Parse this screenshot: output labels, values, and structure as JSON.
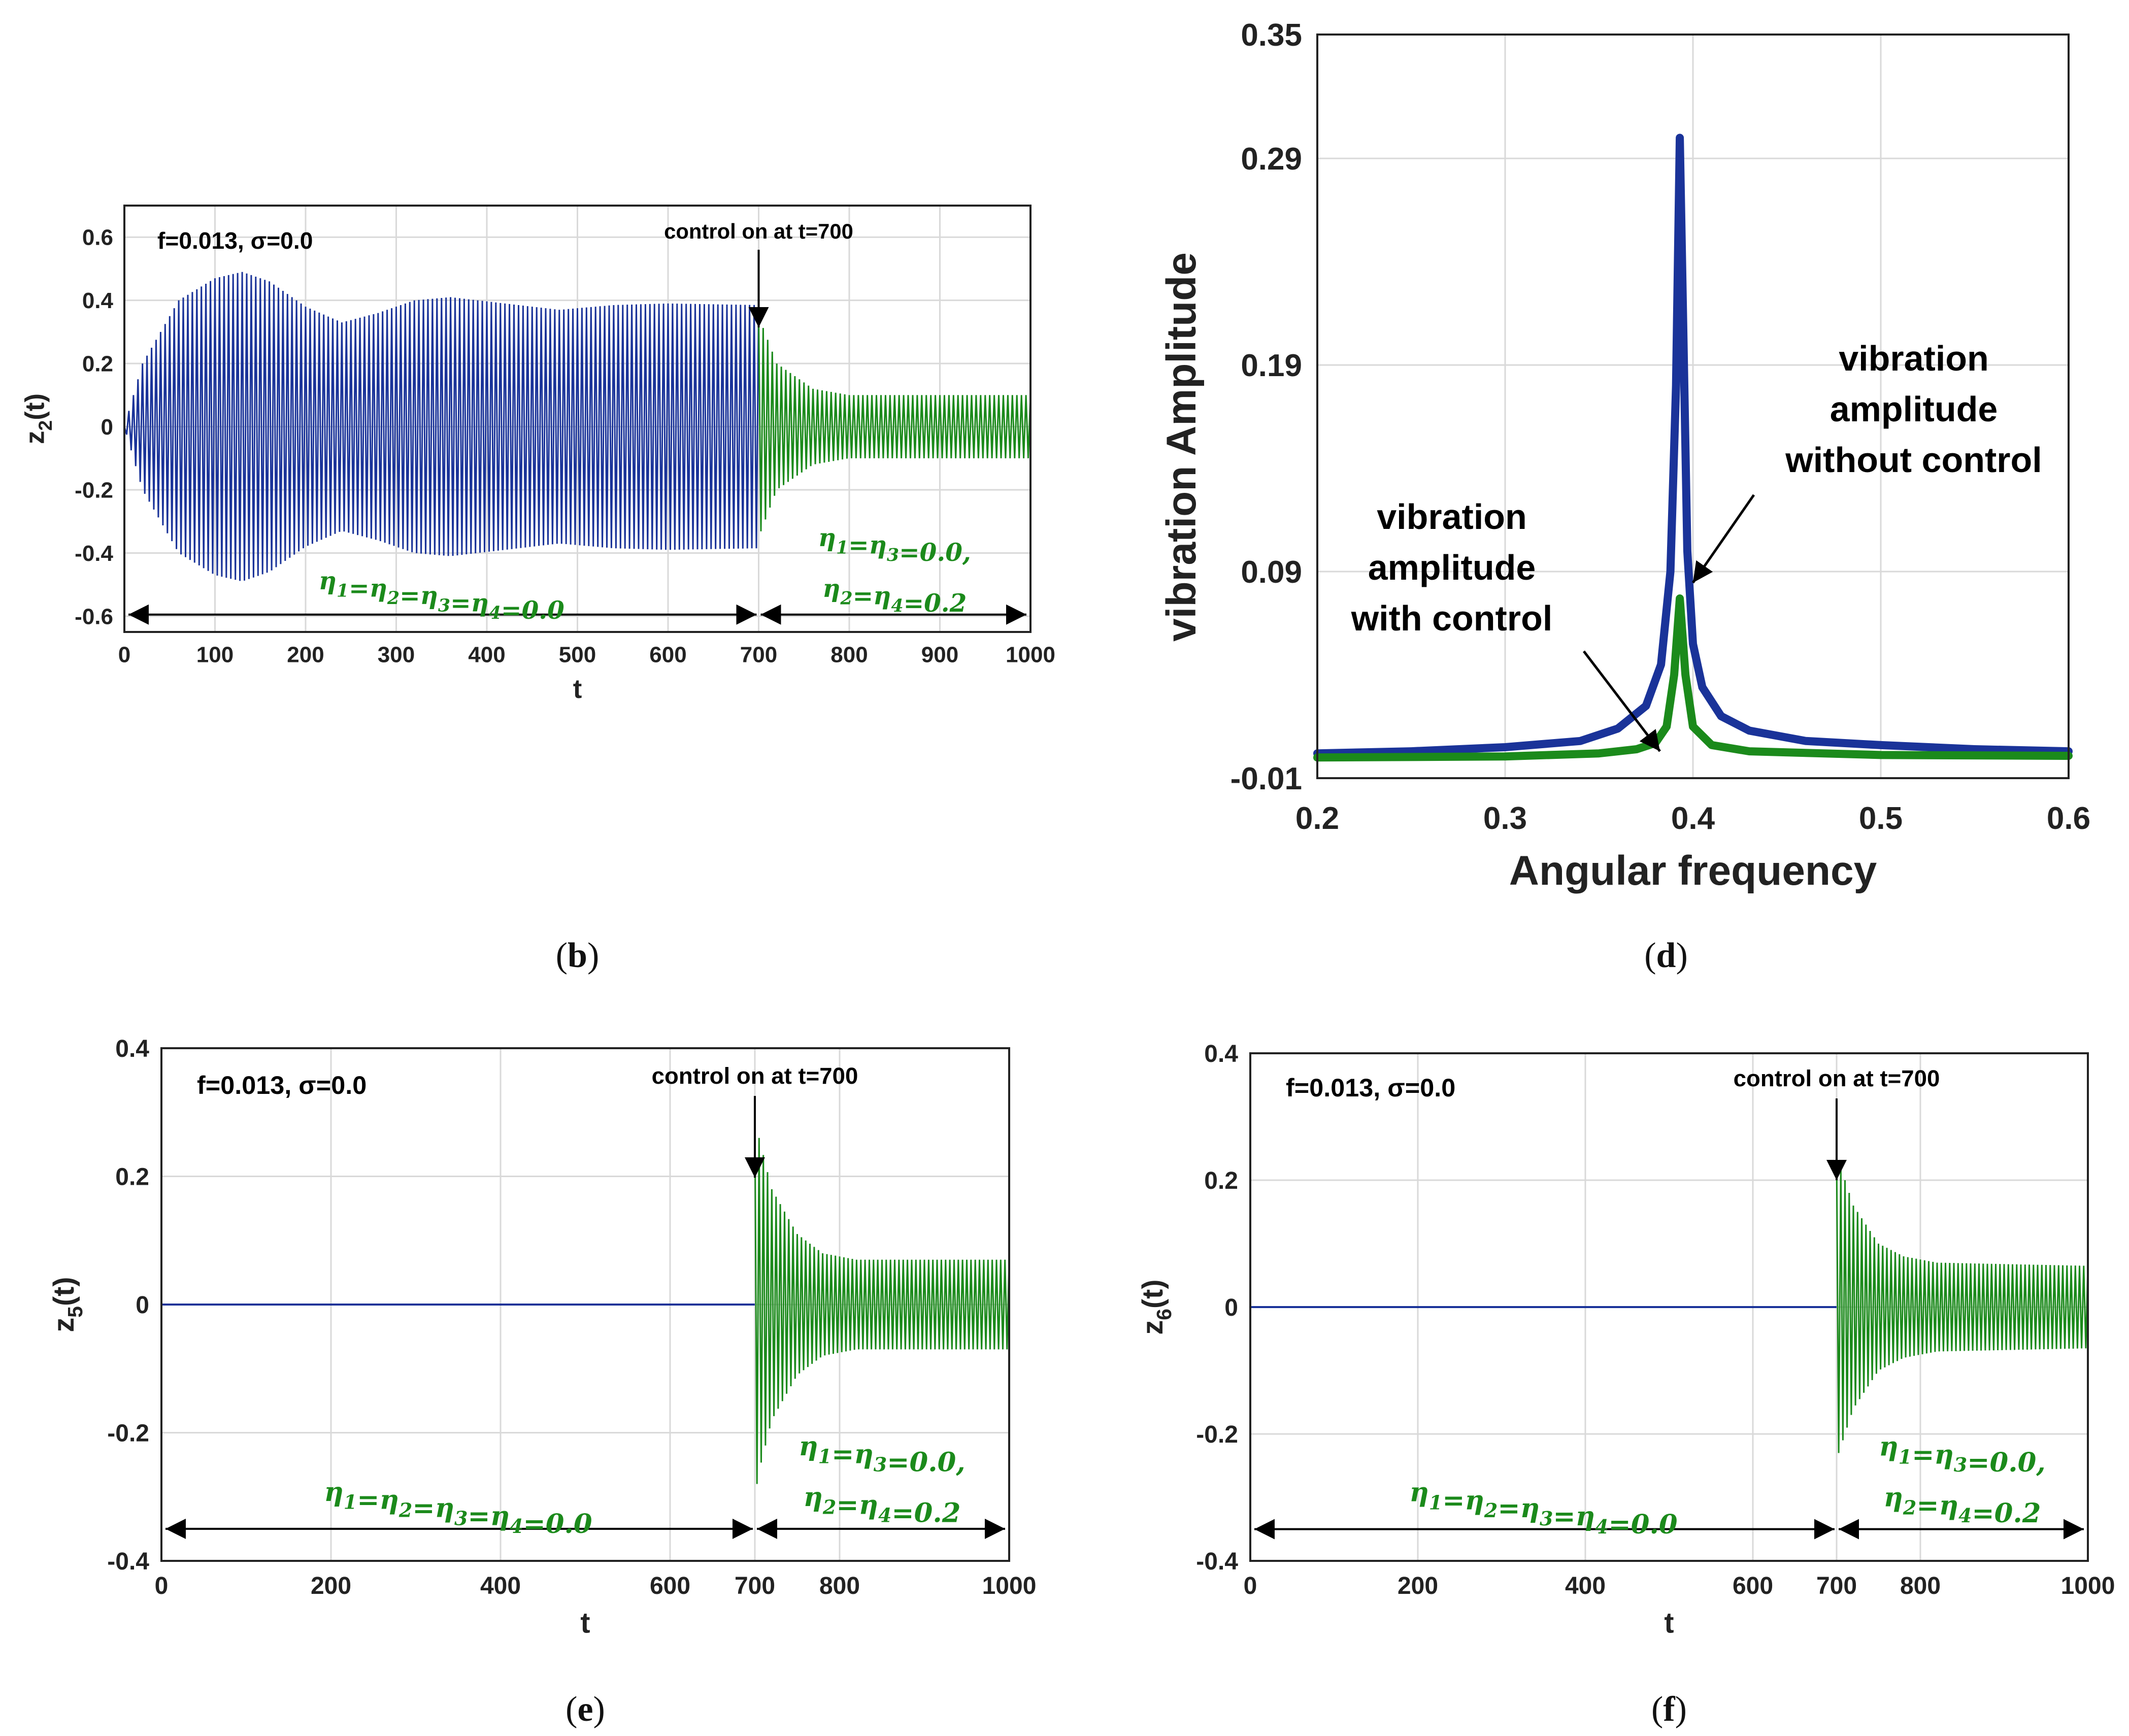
{
  "colors": {
    "uncontrolled": "#1a3399",
    "controlled": "#1b8a1b",
    "grid": "#d9d9d9",
    "axis": "#222222"
  },
  "chart_data": [
    {
      "id": "b",
      "type": "line",
      "caption": {
        "open": "(",
        "letter": "b",
        "close": ")"
      },
      "annotation": "f=0.013, σ=0.0",
      "control_label": "control on at t=700",
      "xlabel": "t",
      "ylabel": {
        "base": "z",
        "sub": "2",
        "tail": "(t)"
      },
      "xlim": [
        0,
        1000
      ],
      "ylim": [
        -0.65,
        0.7
      ],
      "xticks": [
        "0",
        "100",
        "200",
        "300",
        "400",
        "500",
        "600",
        "700",
        "800",
        "900",
        "1000"
      ],
      "yticks": [
        "-0.6",
        "-0.4",
        "-0.2",
        "0",
        "0.2",
        "0.4",
        "0.6"
      ],
      "regime_before": {
        "label": "η1=η2=η3=η4=0.0",
        "from": 0,
        "to": 700
      },
      "regime_after": {
        "line1": "η1=η3=0.0,",
        "line2": "η2=η4=0.2",
        "from": 700,
        "to": 1000
      },
      "series": [
        {
          "name": "without control",
          "t_range": [
            0,
            700
          ],
          "envelope": [
            [
              0,
              0
            ],
            [
              20,
              0.2
            ],
            [
              60,
              0.4
            ],
            [
              100,
              0.47
            ],
            [
              130,
              0.49
            ],
            [
              160,
              0.46
            ],
            [
              200,
              0.38
            ],
            [
              240,
              0.33
            ],
            [
              280,
              0.36
            ],
            [
              320,
              0.4
            ],
            [
              360,
              0.41
            ],
            [
              420,
              0.39
            ],
            [
              480,
              0.37
            ],
            [
              540,
              0.385
            ],
            [
              600,
              0.39
            ],
            [
              700,
              0.385
            ]
          ]
        },
        {
          "name": "with control",
          "t_range": [
            700,
            1000
          ],
          "envelope": [
            [
              700,
              0.35
            ],
            [
              720,
              0.2
            ],
            [
              760,
              0.12
            ],
            [
              800,
              0.1
            ],
            [
              1000,
              0.1
            ]
          ]
        }
      ]
    },
    {
      "id": "d",
      "type": "line",
      "caption": {
        "open": "(",
        "letter": "d",
        "close": ")"
      },
      "xlabel": "Angular frequency",
      "ylabel": "vibration Amplitude",
      "xlim": [
        0.2,
        0.6
      ],
      "ylim": [
        -0.01,
        0.35
      ],
      "xticks": [
        "0.2",
        "0.3",
        "0.4",
        "0.5",
        "0.6"
      ],
      "yticks": [
        "-0.01",
        "0.09",
        "0.19",
        "0.29",
        "0.35"
      ],
      "labels": {
        "with": [
          "vibration",
          "amplitude",
          "with control"
        ],
        "without": [
          "vibration",
          "amplitude",
          "without control"
        ]
      },
      "series": [
        {
          "name": "without control",
          "x": [
            0.2,
            0.25,
            0.3,
            0.34,
            0.36,
            0.375,
            0.383,
            0.388,
            0.391,
            0.393,
            0.395,
            0.397,
            0.4,
            0.405,
            0.415,
            0.43,
            0.46,
            0.5,
            0.55,
            0.6
          ],
          "y": [
            0.002,
            0.003,
            0.005,
            0.008,
            0.014,
            0.025,
            0.045,
            0.09,
            0.18,
            0.3,
            0.2,
            0.1,
            0.055,
            0.034,
            0.02,
            0.013,
            0.008,
            0.006,
            0.004,
            0.003
          ]
        },
        {
          "name": "with control",
          "x": [
            0.2,
            0.3,
            0.35,
            0.37,
            0.38,
            0.386,
            0.39,
            0.393,
            0.396,
            0.4,
            0.41,
            0.43,
            0.5,
            0.6
          ],
          "y": [
            0.0,
            0.0005,
            0.002,
            0.004,
            0.007,
            0.015,
            0.04,
            0.077,
            0.04,
            0.015,
            0.006,
            0.003,
            0.0012,
            0.0008
          ]
        }
      ]
    },
    {
      "id": "e",
      "type": "line",
      "caption": {
        "open": "(",
        "letter": "e",
        "close": ")"
      },
      "annotation": "f=0.013, σ=0.0",
      "control_label": "control on at t=700",
      "xlabel": "t",
      "ylabel": {
        "base": "z",
        "sub": "5",
        "tail": "(t)"
      },
      "xlim": [
        0,
        1000
      ],
      "ylim": [
        -0.4,
        0.4
      ],
      "xticks": [
        "0",
        "200",
        "400",
        "600",
        "700",
        "800",
        "1000"
      ],
      "xtick_values": [
        0,
        200,
        400,
        600,
        700,
        800,
        1000
      ],
      "yticks": [
        "-0.4",
        "-0.2",
        "0",
        "0.2",
        "0.4"
      ],
      "regime_before": {
        "label": "η1=η2=η3=η4=0.0",
        "from": 0,
        "to": 700
      },
      "regime_after": {
        "line1": "η1=η3=0.0,",
        "line2": "η2=η4=0.2",
        "from": 700,
        "to": 1000
      },
      "series": [
        {
          "name": "without control",
          "t_range": [
            0,
            700
          ],
          "value": 0
        },
        {
          "name": "with control",
          "t_range": [
            700,
            1000
          ],
          "envelope": [
            [
              700,
              0.3
            ],
            [
              705,
              0.26
            ],
            [
              720,
              0.18
            ],
            [
              750,
              0.11
            ],
            [
              780,
              0.08
            ],
            [
              820,
              0.07
            ],
            [
              1000,
              0.07
            ]
          ]
        }
      ]
    },
    {
      "id": "f",
      "type": "line",
      "caption": {
        "open": "(",
        "letter": "f",
        "close": ")"
      },
      "annotation": "f=0.013, σ=0.0",
      "control_label": "control on at t=700",
      "xlabel": "t",
      "ylabel": {
        "base": "z",
        "sub": "6",
        "tail": "(t)"
      },
      "xlim": [
        0,
        1000
      ],
      "ylim": [
        -0.4,
        0.4
      ],
      "xticks": [
        "0",
        "200",
        "400",
        "600",
        "700",
        "800",
        "1000"
      ],
      "xtick_values": [
        0,
        200,
        400,
        600,
        700,
        800,
        1000
      ],
      "yticks": [
        "-0.4",
        "-0.2",
        "0",
        "0.2",
        "0.4"
      ],
      "regime_before": {
        "label": "η1=η2=η3=η4=0.0",
        "from": 0,
        "to": 700
      },
      "regime_after": {
        "line1": "η1=η3=0.0,",
        "line2": "η2=η4=0.2",
        "from": 700,
        "to": 1000
      },
      "series": [
        {
          "name": "without control",
          "t_range": [
            0,
            700
          ],
          "value": 0
        },
        {
          "name": "with control",
          "t_range": [
            700,
            1000
          ],
          "envelope": [
            [
              700,
              0.24
            ],
            [
              705,
              0.22
            ],
            [
              720,
              0.16
            ],
            [
              750,
              0.1
            ],
            [
              780,
              0.08
            ],
            [
              820,
              0.07
            ],
            [
              1000,
              0.065
            ]
          ]
        }
      ]
    }
  ]
}
